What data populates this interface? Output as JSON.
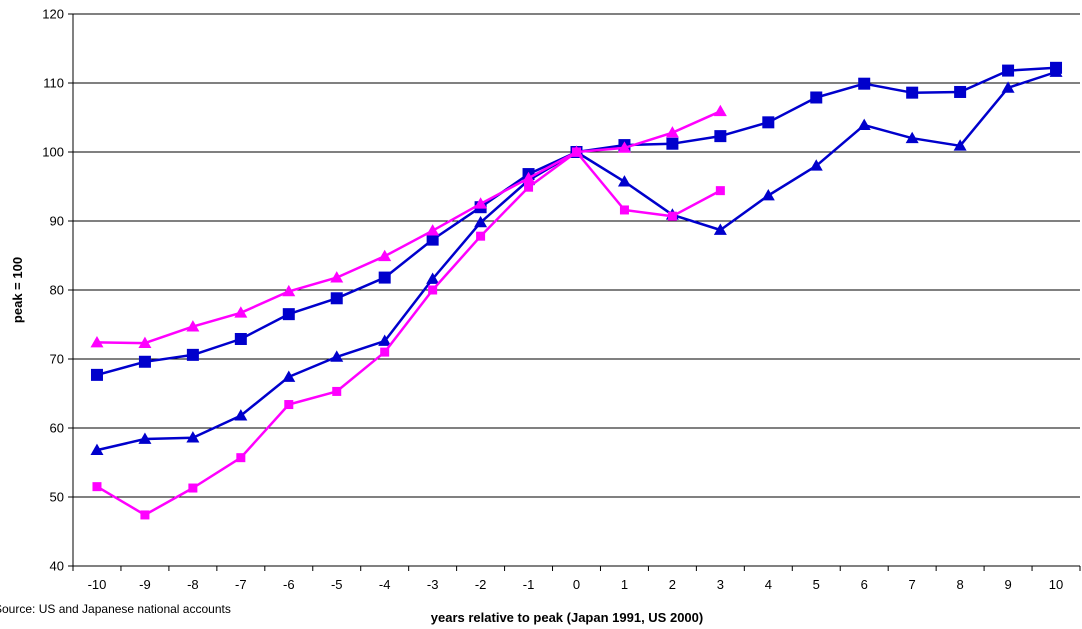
{
  "chart_data": {
    "type": "line",
    "xlabel": "years relative to peak (Japan 1991, US 2000)",
    "ylabel": "peak = 100",
    "note": "Source: US and Japanese national accounts",
    "x": [
      -10,
      -9,
      -8,
      -7,
      -6,
      -5,
      -4,
      -3,
      -2,
      -1,
      0,
      1,
      2,
      3,
      4,
      5,
      6,
      7,
      8,
      9,
      10
    ],
    "xticks": [
      "-10",
      "-9",
      "-8",
      "-7",
      "-6",
      "-5",
      "-4",
      "-3",
      "-2",
      "-1",
      "0",
      "1",
      "2",
      "3",
      "4",
      "5",
      "6",
      "7",
      "8",
      "9",
      "10"
    ],
    "ylim": [
      40,
      120
    ],
    "yticks": [
      40,
      50,
      60,
      70,
      80,
      90,
      100,
      110,
      120
    ],
    "grid": "horizontal",
    "series": [
      {
        "color": "#0000CC",
        "marker": "square",
        "x": [
          -10,
          -9,
          -8,
          -7,
          -6,
          -5,
          -4,
          -3,
          -2,
          -1,
          0,
          1,
          2,
          3,
          4,
          5,
          6,
          7,
          8,
          9,
          10
        ],
        "values": [
          67.7,
          69.6,
          70.6,
          72.9,
          76.5,
          78.8,
          81.8,
          87.3,
          92.0,
          96.8,
          100,
          101.0,
          101.2,
          102.3,
          104.3,
          107.9,
          109.9,
          108.6,
          108.7,
          111.8,
          112.2
        ]
      },
      {
        "color": "#0000CC",
        "marker": "triangle",
        "x": [
          -10,
          -9,
          -8,
          -7,
          -6,
          -5,
          -4,
          -3,
          -2,
          -1,
          0,
          1,
          2,
          3,
          4,
          5,
          6,
          7,
          8,
          9,
          10
        ],
        "values": [
          56.8,
          58.4,
          58.6,
          61.8,
          67.4,
          70.3,
          72.6,
          81.6,
          89.8,
          95.9,
          100,
          95.7,
          90.9,
          88.7,
          93.7,
          98.0,
          103.9,
          102.0,
          100.9,
          109.3,
          111.6
        ]
      },
      {
        "color": "#FF00FF",
        "marker": "triangle",
        "x": [
          -10,
          -9,
          -8,
          -7,
          -6,
          -5,
          -4,
          -3,
          -2,
          -1,
          0,
          1,
          2,
          3
        ],
        "values": [
          72.4,
          72.3,
          74.7,
          76.7,
          79.8,
          81.8,
          84.9,
          88.6,
          92.5,
          96.2,
          100,
          100.6,
          102.8,
          105.9
        ]
      },
      {
        "color": "#FF00FF",
        "marker": "square",
        "x": [
          -10,
          -9,
          -8,
          -7,
          -6,
          -5,
          -4,
          -3,
          -2,
          -1,
          0,
          1,
          2,
          3
        ],
        "values": [
          51.5,
          47.4,
          51.3,
          55.7,
          63.4,
          65.3,
          71.0,
          80.0,
          87.8,
          94.9,
          100,
          91.6,
          90.7,
          94.4
        ]
      }
    ]
  }
}
